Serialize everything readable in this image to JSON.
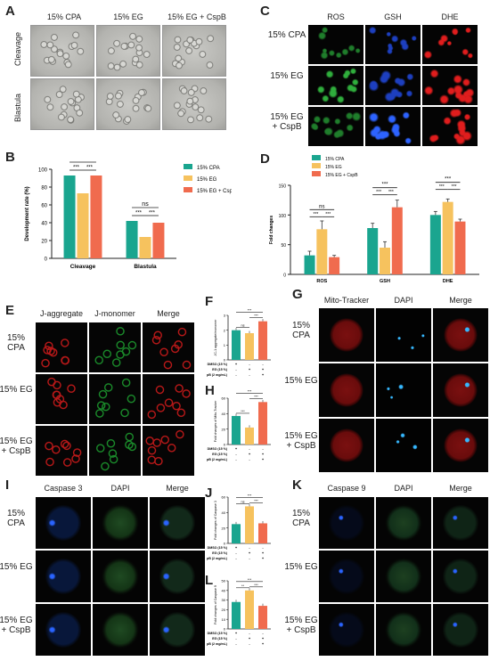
{
  "colors": {
    "cpa": "#1aa58f",
    "eg": "#f6c25e",
    "egcspb": "#f06b4e"
  },
  "panelA": {
    "letter": "A",
    "cols": [
      "15% CPA",
      "15% EG",
      "15% EG + CspB"
    ],
    "rows": [
      "Cleavage",
      "Blastula"
    ]
  },
  "panelB": {
    "letter": "B",
    "chart_data": {
      "type": "bar",
      "ylabel": "Development rate (%)",
      "ylim": [
        0,
        100
      ],
      "yticks": [
        0,
        20,
        40,
        60,
        80,
        100
      ],
      "categories": [
        "Cleavage",
        "Blastula"
      ],
      "series": [
        {
          "name": "15% CPA",
          "values": [
            93,
            42
          ]
        },
        {
          "name": "15% EG",
          "values": [
            73,
            24
          ]
        },
        {
          "name": "15% EG + CspB",
          "values": [
            93,
            40
          ]
        }
      ]
    },
    "sig": {
      "ns": "ns",
      "s3": "***"
    }
  },
  "panelC": {
    "letter": "C",
    "cols": [
      "ROS",
      "GSH",
      "DHE"
    ],
    "rows": [
      "15% CPA",
      "15% EG",
      "15% EG + CspB"
    ]
  },
  "panelD": {
    "letter": "D",
    "chart_data": {
      "type": "bar",
      "ylabel": "Fold changes",
      "ylim": [
        0,
        150
      ],
      "yticks": [
        0,
        50,
        100,
        150
      ],
      "categories": [
        "ROS",
        "GSH",
        "DHE"
      ],
      "series": [
        {
          "name": "15% CPA",
          "values": [
            32,
            78,
            100
          ]
        },
        {
          "name": "15% EG",
          "values": [
            76,
            45,
            122
          ]
        },
        {
          "name": "15% EG + CspB",
          "values": [
            29,
            113,
            89
          ]
        }
      ]
    },
    "sig": {
      "ns": "ns",
      "s3": "***"
    }
  },
  "panelE": {
    "letter": "E",
    "cols": [
      "J-aggregate",
      "J-monomer",
      "Merge"
    ],
    "rows": [
      "15% CPA",
      "15% EG",
      "15% EG + CspB"
    ]
  },
  "panelF": {
    "letter": "F",
    "chart_data": {
      "type": "bar",
      "ylabel": "JC-1 aggregate/monomer",
      "ylim": [
        0,
        3
      ],
      "yticks": [
        0,
        1,
        2,
        3
      ],
      "categories": [
        "1",
        "2",
        "3"
      ],
      "values": [
        2.0,
        1.8,
        2.6
      ]
    },
    "table": {
      "rows": [
        {
          "label": "DMSO (15 %)",
          "cells": [
            "+",
            "-",
            "-"
          ]
        },
        {
          "label": "EG (15 %)",
          "cells": [
            "-",
            "+",
            "+"
          ]
        },
        {
          "label": "CspB (2 mg/mL)",
          "cells": [
            "-",
            "-",
            "+"
          ]
        }
      ]
    },
    "sig": [
      "ns",
      "***",
      "***"
    ]
  },
  "panelG": {
    "letter": "G",
    "cols": [
      "Mito-Tracker",
      "DAPI",
      "Merge"
    ],
    "rows": [
      "15% CPA",
      "15% EG",
      "15% EG + CspB"
    ]
  },
  "panelH": {
    "letter": "H",
    "chart_data": {
      "type": "bar",
      "ylabel": "Fold changes of Mito-Tracker",
      "ylim": [
        0,
        60
      ],
      "yticks": [
        0,
        20,
        40,
        60
      ],
      "categories": [
        "1",
        "2",
        "3"
      ],
      "values": [
        37,
        22,
        55
      ]
    },
    "table": {
      "rows": [
        {
          "label": "DMSO (15 %)",
          "cells": [
            "+",
            "-",
            "-"
          ]
        },
        {
          "label": "EG (15 %)",
          "cells": [
            "-",
            "+",
            "+"
          ]
        },
        {
          "label": "CspB (2 mg/mL)",
          "cells": [
            "-",
            "-",
            "+"
          ]
        }
      ]
    },
    "sig": [
      "***",
      "***",
      "***"
    ]
  },
  "panelI": {
    "letter": "I",
    "cols": [
      "Caspase 3",
      "DAPI",
      "Merge"
    ],
    "rows": [
      "15% CPA",
      "15% EG",
      "15% EG + CspB"
    ]
  },
  "panelJ": {
    "letter": "J",
    "chart_data": {
      "type": "bar",
      "ylabel": "Fold changes of Caspase 3",
      "ylim": [
        0,
        60
      ],
      "yticks": [
        0,
        20,
        40,
        60
      ],
      "categories": [
        "1",
        "2",
        "3"
      ],
      "values": [
        25,
        48,
        26
      ]
    },
    "table": {
      "rows": [
        {
          "label": "DMSO (15 %)",
          "cells": [
            "+",
            "-",
            "-"
          ]
        },
        {
          "label": "EG (15 %)",
          "cells": [
            "-",
            "+",
            "+"
          ]
        },
        {
          "label": "CspB (2 mg/mL)",
          "cells": [
            "-",
            "-",
            "+"
          ]
        }
      ]
    },
    "sig": [
      "ns",
      "***",
      "***"
    ]
  },
  "panelK": {
    "letter": "K",
    "cols": [
      "Caspase 9",
      "DAPI",
      "Merge"
    ],
    "rows": [
      "15% CPA",
      "15% EG",
      "15% EG + CspB"
    ]
  },
  "panelL": {
    "letter": "L",
    "chart_data": {
      "type": "bar",
      "ylabel": "Fold changes of Caspase 9",
      "ylim": [
        0,
        50
      ],
      "yticks": [
        0,
        10,
        20,
        30,
        40,
        50
      ],
      "categories": [
        "1",
        "2",
        "3"
      ],
      "values": [
        28,
        40,
        24
      ]
    },
    "table": {
      "rows": [
        {
          "label": "DMSO (15 %)",
          "cells": [
            "+",
            "-",
            "-"
          ]
        },
        {
          "label": "EG (15 %)",
          "cells": [
            "-",
            "+",
            "+"
          ]
        },
        {
          "label": "CspB (2 mg/mL)",
          "cells": [
            "-",
            "-",
            "+"
          ]
        }
      ]
    },
    "sig": [
      "**",
      "***",
      "***"
    ]
  }
}
